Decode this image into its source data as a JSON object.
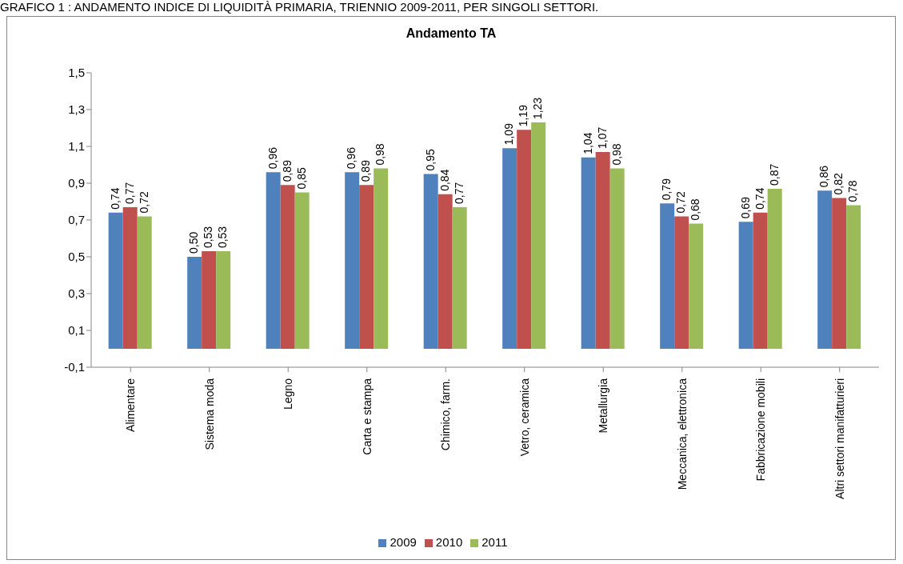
{
  "chart_data": {
    "type": "bar",
    "title": "Andamento TA",
    "annotations": [
      "GRAFICO 1 : ANDAMENTO INDICE DI LIQUIDITÀ PRIMARIA, TRIENNIO 2009-2011, PER SINGOLI SETTORI."
    ],
    "categories": [
      "Alimentare",
      "Sistema moda",
      "Legno",
      "Carta e stampa",
      "Chimico, farm.",
      "Vetro, ceramica",
      "Metallurgia",
      "Meccanica, elettronica",
      "Fabbricazione mobili",
      "Altri settori manifatturieri"
    ],
    "series": [
      {
        "name": "2009",
        "color": "#4f81bd",
        "values": [
          0.74,
          0.5,
          0.96,
          0.96,
          0.95,
          1.09,
          1.04,
          0.79,
          0.69,
          0.86
        ],
        "value_labels": [
          "0,74",
          "0,50",
          "0,96",
          "0,96",
          "0,95",
          "1,09",
          "1,04",
          "0,79",
          "0,69",
          "0,86"
        ]
      },
      {
        "name": "2010",
        "color": "#c0504d",
        "values": [
          0.77,
          0.53,
          0.89,
          0.89,
          0.84,
          1.19,
          1.07,
          0.72,
          0.74,
          0.82
        ],
        "value_labels": [
          "0,77",
          "0,53",
          "0,89",
          "0,89",
          "0,84",
          "1,19",
          "1,07",
          "0,72",
          "0,74",
          "0,82"
        ]
      },
      {
        "name": "2011",
        "color": "#9bbb59",
        "values": [
          0.72,
          0.53,
          0.85,
          0.98,
          0.77,
          1.23,
          0.98,
          0.68,
          0.87,
          0.78
        ],
        "value_labels": [
          "0,72",
          "0,53",
          "0,85",
          "0,98",
          "0,77",
          "1,23",
          "0,98",
          "0,68",
          "0,87",
          "0,78"
        ]
      }
    ],
    "ylim": [
      -0.1,
      1.5
    ],
    "yticks": [
      {
        "value": -0.1,
        "label": "-0,1"
      },
      {
        "value": 0.1,
        "label": "0,1"
      },
      {
        "value": 0.3,
        "label": "0,3"
      },
      {
        "value": 0.5,
        "label": "0,5"
      },
      {
        "value": 0.7,
        "label": "0,7"
      },
      {
        "value": 0.9,
        "label": "0,9"
      },
      {
        "value": 1.1,
        "label": "1,1"
      },
      {
        "value": 1.3,
        "label": "1,3"
      },
      {
        "value": 1.5,
        "label": "1,5"
      }
    ],
    "grid": false,
    "legend": "bottom"
  }
}
